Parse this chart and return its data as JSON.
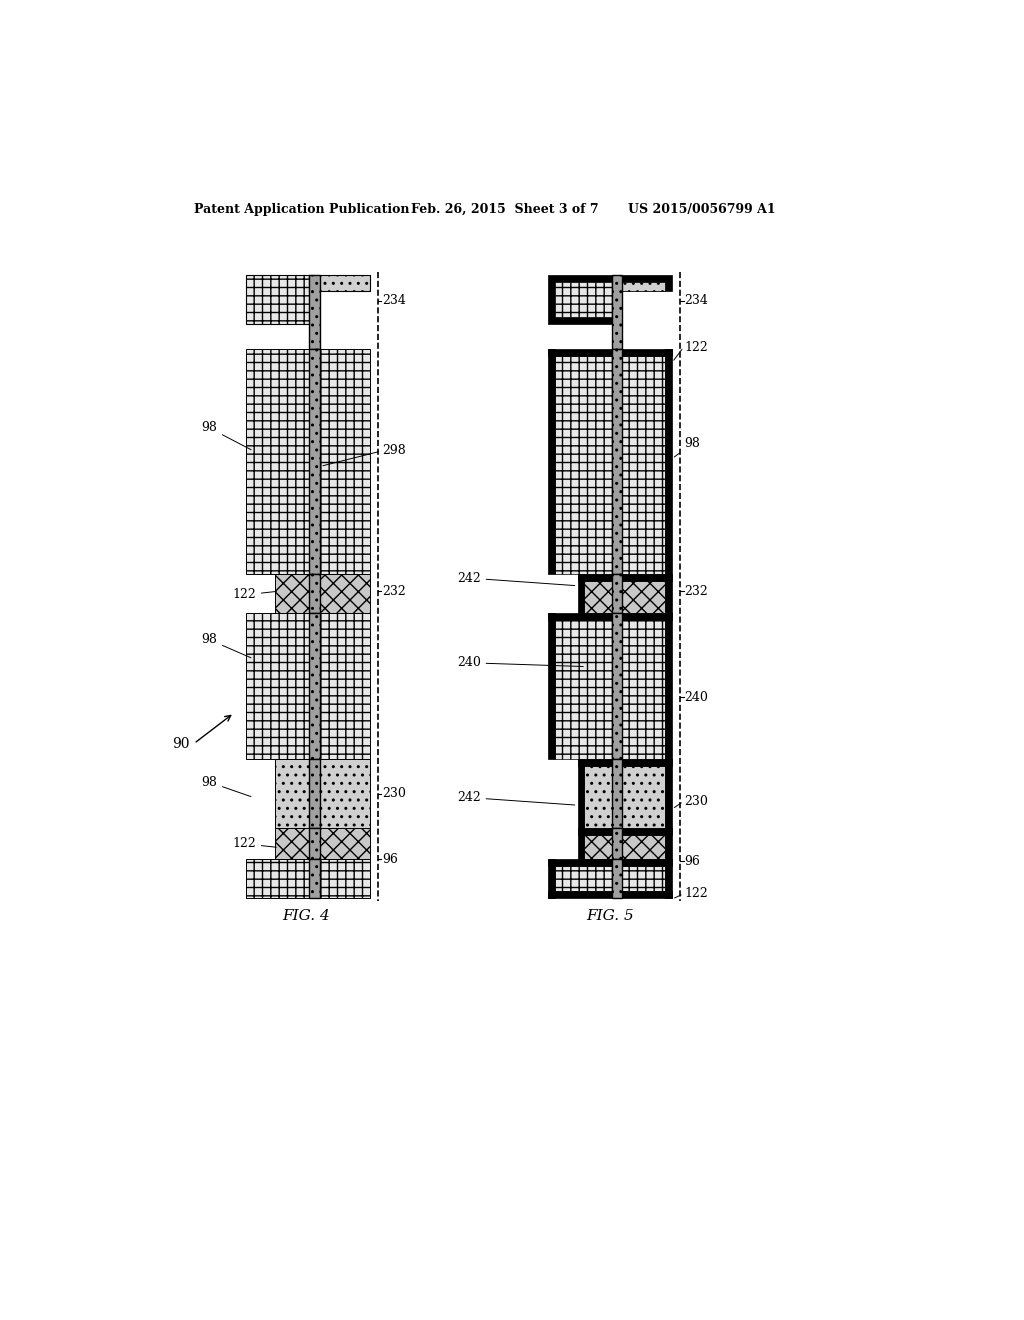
{
  "header_left": "Patent Application Publication",
  "header_center": "Feb. 26, 2015  Sheet 3 of 7",
  "header_right": "US 2015/0056799 A1",
  "background": "#ffffff"
}
